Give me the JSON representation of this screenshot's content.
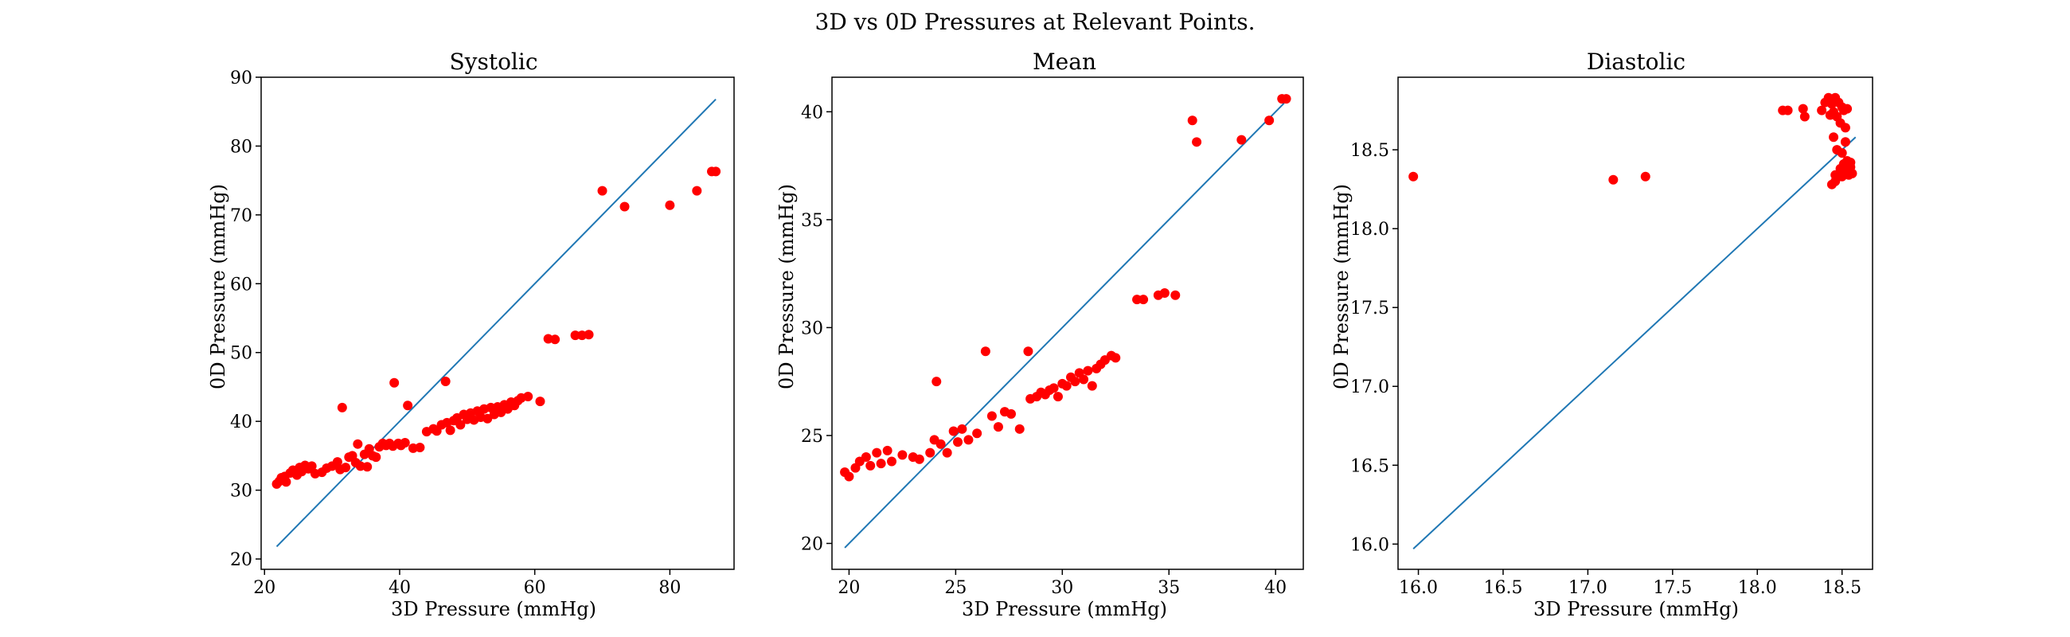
{
  "figure": {
    "title": "3D vs 0D Pressures at Relevant Points."
  },
  "chart_data": [
    {
      "type": "scatter",
      "title": "Systolic",
      "xlabel": "3D Pressure (mmHg)",
      "ylabel": "0D Pressure (mmHg)",
      "xlim": [
        19.5,
        89.5
      ],
      "ylim": [
        18.5,
        90
      ],
      "xticks": [
        20,
        40,
        60,
        80
      ],
      "yticks": [
        20,
        30,
        40,
        50,
        60,
        70,
        80,
        90
      ],
      "line": {
        "x": [
          21.8,
          86.8
        ],
        "y": [
          21.8,
          86.8
        ]
      },
      "points": [
        [
          21.8,
          30.9
        ],
        [
          22.2,
          31.3
        ],
        [
          22.5,
          31.8
        ],
        [
          23,
          32
        ],
        [
          23.2,
          31.2
        ],
        [
          23.8,
          32.5
        ],
        [
          24.2,
          32.9
        ],
        [
          24.8,
          32.2
        ],
        [
          25.2,
          33.3
        ],
        [
          25.5,
          32.7
        ],
        [
          26,
          33.6
        ],
        [
          26.5,
          33.1
        ],
        [
          27,
          33.5
        ],
        [
          27.5,
          32.4
        ],
        [
          28.5,
          32.6
        ],
        [
          29.2,
          33.2
        ],
        [
          30,
          33.5
        ],
        [
          30.8,
          34.1
        ],
        [
          31.2,
          33
        ],
        [
          31.5,
          42
        ],
        [
          32,
          33.3
        ],
        [
          32.5,
          34.8
        ],
        [
          33,
          35
        ],
        [
          33.5,
          34
        ],
        [
          33.8,
          36.7
        ],
        [
          34.2,
          33.5
        ],
        [
          34.8,
          35.2
        ],
        [
          35.2,
          33.4
        ],
        [
          35.5,
          36
        ],
        [
          36,
          35
        ],
        [
          36.5,
          34.8
        ],
        [
          37,
          36.3
        ],
        [
          37.5,
          36.8
        ],
        [
          38,
          36.5
        ],
        [
          38.5,
          36.8
        ],
        [
          39,
          36.4
        ],
        [
          39.2,
          45.6
        ],
        [
          39.8,
          36.8
        ],
        [
          40.2,
          36.5
        ],
        [
          40.8,
          36.9
        ],
        [
          41.2,
          42.3
        ],
        [
          42,
          36.1
        ],
        [
          43,
          36.2
        ],
        [
          44,
          38.5
        ],
        [
          45,
          38.9
        ],
        [
          45.5,
          38.6
        ],
        [
          46.2,
          39.5
        ],
        [
          46.8,
          45.8
        ],
        [
          47,
          39.8
        ],
        [
          47.5,
          38.7
        ],
        [
          48,
          40.1
        ],
        [
          48.5,
          40.5
        ],
        [
          49,
          39.5
        ],
        [
          49.5,
          41
        ],
        [
          50,
          40.3
        ],
        [
          50.5,
          41.2
        ],
        [
          51,
          40.2
        ],
        [
          51.5,
          41.5
        ],
        [
          52,
          40.6
        ],
        [
          52.5,
          41.8
        ],
        [
          53,
          40.4
        ],
        [
          53.5,
          42
        ],
        [
          54,
          41
        ],
        [
          54.5,
          42.1
        ],
        [
          55,
          41.3
        ],
        [
          55.5,
          42.4
        ],
        [
          56,
          41.8
        ],
        [
          56.5,
          42.8
        ],
        [
          57,
          42.3
        ],
        [
          57.5,
          43
        ],
        [
          58,
          43.4
        ],
        [
          59,
          43.6
        ],
        [
          60.8,
          42.9
        ],
        [
          62,
          52
        ],
        [
          63,
          51.9
        ],
        [
          66,
          52.5
        ],
        [
          67,
          52.5
        ],
        [
          68,
          52.6
        ],
        [
          70,
          73.5
        ],
        [
          73.3,
          71.2
        ],
        [
          80,
          71.4
        ],
        [
          84,
          73.5
        ],
        [
          86.2,
          76.3
        ],
        [
          86.8,
          76.3
        ]
      ]
    },
    {
      "type": "scatter",
      "title": "Mean",
      "xlabel": "3D Pressure (mmHg)",
      "ylabel": "0D Pressure (mmHg)",
      "xlim": [
        19.2,
        41.3
      ],
      "ylim": [
        18.8,
        41.6
      ],
      "xticks": [
        20,
        25,
        30,
        35,
        40
      ],
      "yticks": [
        20,
        25,
        30,
        35,
        40
      ],
      "line": {
        "x": [
          19.8,
          40.4
        ],
        "y": [
          19.8,
          40.4
        ]
      },
      "points": [
        [
          19.8,
          23.3
        ],
        [
          20,
          23.1
        ],
        [
          20.3,
          23.5
        ],
        [
          20.5,
          23.8
        ],
        [
          20.8,
          24
        ],
        [
          21,
          23.6
        ],
        [
          21.3,
          24.2
        ],
        [
          21.5,
          23.7
        ],
        [
          21.8,
          24.3
        ],
        [
          22,
          23.8
        ],
        [
          22.5,
          24.1
        ],
        [
          23,
          24
        ],
        [
          23.3,
          23.9
        ],
        [
          23.8,
          24.2
        ],
        [
          24,
          24.8
        ],
        [
          24.1,
          27.5
        ],
        [
          24.3,
          24.6
        ],
        [
          24.6,
          24.2
        ],
        [
          24.9,
          25.2
        ],
        [
          25.1,
          24.7
        ],
        [
          25.3,
          25.3
        ],
        [
          25.6,
          24.8
        ],
        [
          26,
          25.1
        ],
        [
          26.4,
          28.9
        ],
        [
          26.7,
          25.9
        ],
        [
          27,
          25.4
        ],
        [
          27.3,
          26.1
        ],
        [
          27.6,
          26
        ],
        [
          28,
          25.3
        ],
        [
          28.4,
          28.9
        ],
        [
          28.5,
          26.7
        ],
        [
          28.8,
          26.8
        ],
        [
          29,
          27
        ],
        [
          29.2,
          26.9
        ],
        [
          29.4,
          27.1
        ],
        [
          29.6,
          27.2
        ],
        [
          29.8,
          26.8
        ],
        [
          30,
          27.4
        ],
        [
          30.2,
          27.3
        ],
        [
          30.4,
          27.7
        ],
        [
          30.6,
          27.5
        ],
        [
          30.8,
          27.9
        ],
        [
          31,
          27.6
        ],
        [
          31.2,
          28
        ],
        [
          31.4,
          27.3
        ],
        [
          31.6,
          28.1
        ],
        [
          31.8,
          28.3
        ],
        [
          32,
          28.5
        ],
        [
          32.3,
          28.7
        ],
        [
          32.5,
          28.6
        ],
        [
          33.5,
          31.3
        ],
        [
          33.8,
          31.3
        ],
        [
          34.5,
          31.5
        ],
        [
          34.8,
          31.6
        ],
        [
          35.3,
          31.5
        ],
        [
          36.1,
          39.6
        ],
        [
          36.3,
          38.6
        ],
        [
          38.4,
          38.7
        ],
        [
          39.7,
          39.6
        ],
        [
          40.3,
          40.6
        ],
        [
          40.5,
          40.6
        ]
      ]
    },
    {
      "type": "scatter",
      "title": "Diastolic",
      "xlabel": "3D Pressure (mmHg)",
      "ylabel": "0D Pressure (mmHg)",
      "xlim": [
        15.88,
        18.68
      ],
      "ylim": [
        15.84,
        18.96
      ],
      "xticks": [
        16.0,
        16.5,
        17.0,
        17.5,
        18.0,
        18.5
      ],
      "yticks": [
        16.0,
        16.5,
        17.0,
        17.5,
        18.0,
        18.5
      ],
      "line": {
        "x": [
          15.97,
          18.58
        ],
        "y": [
          15.97,
          18.58
        ]
      },
      "points": [
        [
          15.97,
          18.33
        ],
        [
          17.15,
          18.31
        ],
        [
          17.34,
          18.33
        ],
        [
          18.15,
          18.75
        ],
        [
          18.18,
          18.75
        ],
        [
          18.27,
          18.76
        ],
        [
          18.28,
          18.71
        ],
        [
          18.38,
          18.75
        ],
        [
          18.4,
          18.8
        ],
        [
          18.42,
          18.83
        ],
        [
          18.44,
          18.79
        ],
        [
          18.45,
          18.74
        ],
        [
          18.46,
          18.83
        ],
        [
          18.47,
          18.71
        ],
        [
          18.48,
          18.8
        ],
        [
          18.5,
          18.77
        ],
        [
          18.51,
          18.75
        ],
        [
          18.49,
          18.67
        ],
        [
          18.52,
          18.64
        ],
        [
          18.53,
          18.76
        ],
        [
          18.43,
          18.72
        ],
        [
          18.45,
          18.58
        ],
        [
          18.47,
          18.5
        ],
        [
          18.46,
          18.3
        ],
        [
          18.48,
          18.33
        ],
        [
          18.49,
          18.38
        ],
        [
          18.5,
          18.33
        ],
        [
          18.51,
          18.41
        ],
        [
          18.52,
          18.36
        ],
        [
          18.53,
          18.43
        ],
        [
          18.54,
          18.34
        ],
        [
          18.55,
          18.39
        ],
        [
          18.56,
          18.35
        ],
        [
          18.55,
          18.42
        ],
        [
          18.52,
          18.55
        ],
        [
          18.5,
          18.48
        ],
        [
          18.44,
          18.28
        ],
        [
          18.46,
          18.34
        ]
      ]
    }
  ]
}
